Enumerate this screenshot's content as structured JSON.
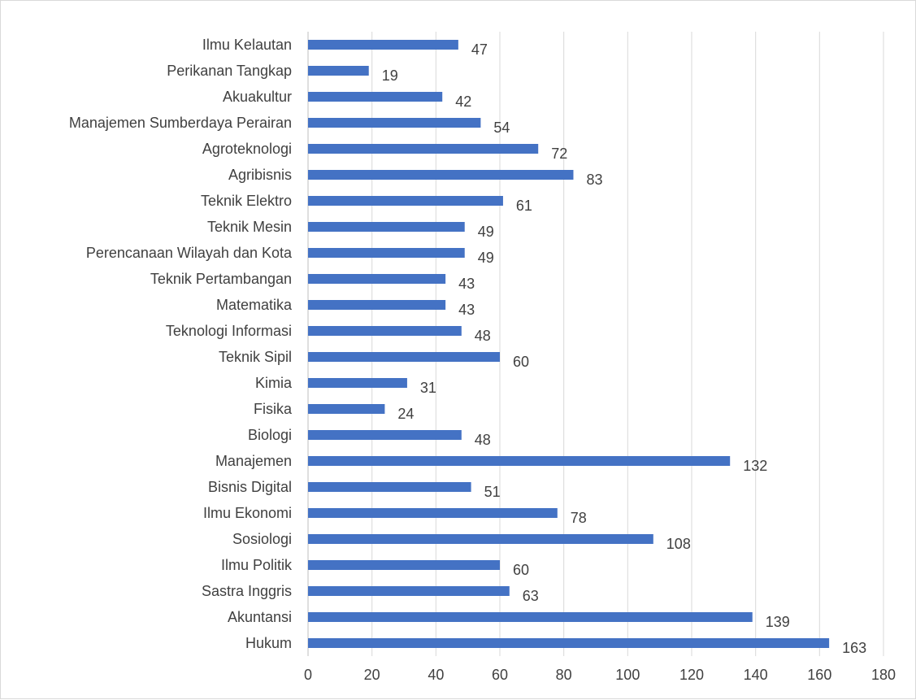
{
  "chart_data": {
    "type": "bar",
    "orientation": "horizontal",
    "title": "",
    "xlabel": "",
    "ylabel": "",
    "xlim": [
      0,
      180
    ],
    "ticks": [
      0,
      20,
      40,
      60,
      80,
      100,
      120,
      140,
      160,
      180
    ],
    "grid": true,
    "legend": "none",
    "bar_color": "#4472c4",
    "categories": [
      "Ilmu Kelautan",
      "Perikanan Tangkap",
      "Akuakultur",
      "Manajemen Sumberdaya Perairan",
      "Agroteknologi",
      "Agribisnis",
      "Teknik Elektro",
      "Teknik Mesin",
      "Perencanaan Wilayah dan Kota",
      "Teknik Pertambangan",
      "Matematika",
      "Teknologi Informasi",
      "Teknik Sipil",
      "Kimia",
      "Fisika",
      "Biologi",
      "Manajemen",
      "Bisnis Digital",
      "Ilmu Ekonomi",
      "Sosiologi",
      "Ilmu Politik",
      "Sastra Inggris",
      "Akuntansi",
      "Hukum"
    ],
    "values": [
      47,
      19,
      42,
      54,
      72,
      83,
      61,
      49,
      49,
      43,
      43,
      48,
      60,
      31,
      24,
      48,
      132,
      51,
      78,
      108,
      60,
      63,
      139,
      163
    ]
  }
}
